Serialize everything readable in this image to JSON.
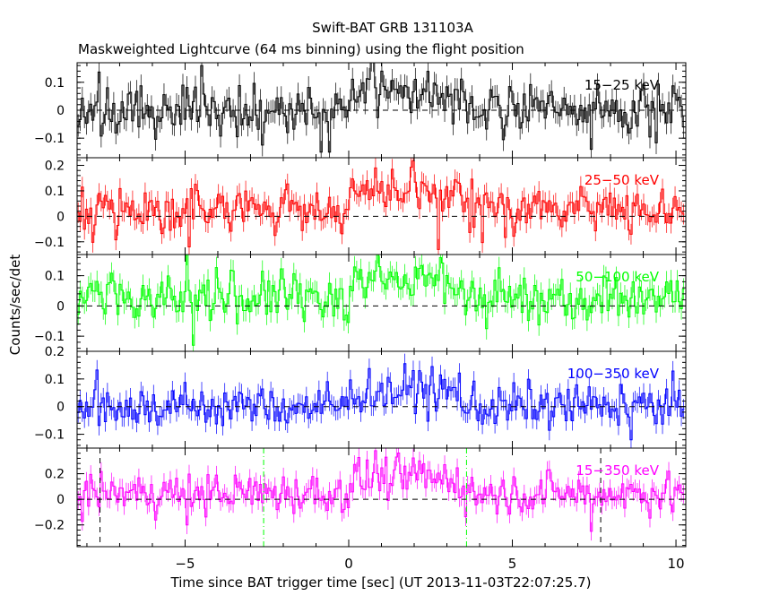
{
  "chart_data": {
    "type": "line",
    "title": "Swift-BAT GRB 131103A",
    "subtitle": "Maskweighted Lightcurve (64 ms binning) using the flight position",
    "xlabel": "Time since BAT trigger time [sec] (UT 2013-11-03T22:07:25.7)",
    "ylabel": "Counts/sec/det",
    "xlim": [
      -8.3,
      10.3
    ],
    "xticks": [
      -5,
      0,
      5,
      10
    ],
    "xtick_labels": [
      "−5",
      "0",
      "5",
      "10"
    ],
    "bin_size_sec": 0.064,
    "grid": false,
    "panels": [
      {
        "name": "15-25 keV",
        "label": "15−25 keV",
        "color": "#000000",
        "ylim": [
          -0.17,
          0.17
        ],
        "yticks": [
          -0.1,
          0,
          0.1
        ],
        "ytick_labels": [
          "−0.1",
          "0",
          "0.1"
        ],
        "approx_mean": 0.0,
        "approx_noise_sigma": 0.045,
        "features": [
          {
            "t": -0.9,
            "value": -0.15
          },
          {
            "t": -0.6,
            "value": -0.15
          },
          {
            "t": 7.4,
            "value": -0.14
          },
          {
            "t": -4.5,
            "value": 0.16
          },
          {
            "t": 1.0,
            "value": 0.14
          }
        ]
      },
      {
        "name": "25-50 keV",
        "label": "25−50 keV",
        "color": "#ff0000",
        "ylim": [
          -0.15,
          0.23
        ],
        "yticks": [
          -0.1,
          0,
          0.1,
          0.2
        ],
        "ytick_labels": [
          "−0.1",
          "0",
          "0.1",
          "0.2"
        ],
        "approx_mean": 0.03,
        "approx_noise_sigma": 0.045,
        "features": [
          {
            "t": 0.8,
            "value": 0.19
          },
          {
            "t": 0.5,
            "value": 0.14
          },
          {
            "t": 2.7,
            "value": -0.13
          },
          {
            "t": -4.9,
            "value": -0.12
          }
        ]
      },
      {
        "name": "50-100 keV",
        "label": "50−100 keV",
        "color": "#00ff00",
        "ylim": [
          -0.15,
          0.17
        ],
        "yticks": [
          -0.1,
          0,
          0.1
        ],
        "ytick_labels": [
          "−0.1",
          "0",
          "0.1"
        ],
        "approx_mean": 0.03,
        "approx_noise_sigma": 0.04,
        "features": [
          {
            "t": -5.0,
            "value": 0.17
          },
          {
            "t": 2.8,
            "value": 0.16
          },
          {
            "t": -4.8,
            "value": -0.13
          }
        ]
      },
      {
        "name": "100-350 keV",
        "label": "100−350 keV",
        "color": "#0000ff",
        "ylim": [
          -0.15,
          0.2
        ],
        "yticks": [
          -0.1,
          0,
          0.1,
          0.2
        ],
        "ytick_labels": [
          "−0.1",
          "0",
          "0.1",
          "0.2"
        ],
        "approx_mean": 0.0,
        "approx_noise_sigma": 0.04,
        "features": [
          {
            "t": 2.1,
            "value": 0.13
          },
          {
            "t": 8.3,
            "value": 0.08
          },
          {
            "t": 8.6,
            "value": -0.12
          }
        ]
      },
      {
        "name": "15-350 keV",
        "label": "15−350 keV",
        "color": "#ff00ff",
        "ylim": [
          -0.37,
          0.4
        ],
        "yticks": [
          -0.2,
          0,
          0.2
        ],
        "ytick_labels": [
          "−0.2",
          "0",
          "0.2"
        ],
        "approx_mean": 0.05,
        "approx_noise_sigma": 0.08,
        "features": [
          {
            "t": 0.8,
            "value": 0.38
          },
          {
            "t": 2.1,
            "value": 0.3
          },
          {
            "t": 7.4,
            "value": -0.25
          },
          {
            "t": -5.0,
            "value": -0.2
          }
        ],
        "vlines": [
          {
            "t": -7.6,
            "style": "dashed",
            "color": "#000000"
          },
          {
            "t": -2.6,
            "style": "dash-dot",
            "color": "#00ff00"
          },
          {
            "t": 3.6,
            "style": "dash-dot",
            "color": "#00ff00"
          },
          {
            "t": 7.7,
            "style": "dashed",
            "color": "#000000"
          }
        ]
      }
    ],
    "burst_window": {
      "start": 0.0,
      "end": 3.5,
      "approx_enhancement": 0.06
    }
  }
}
